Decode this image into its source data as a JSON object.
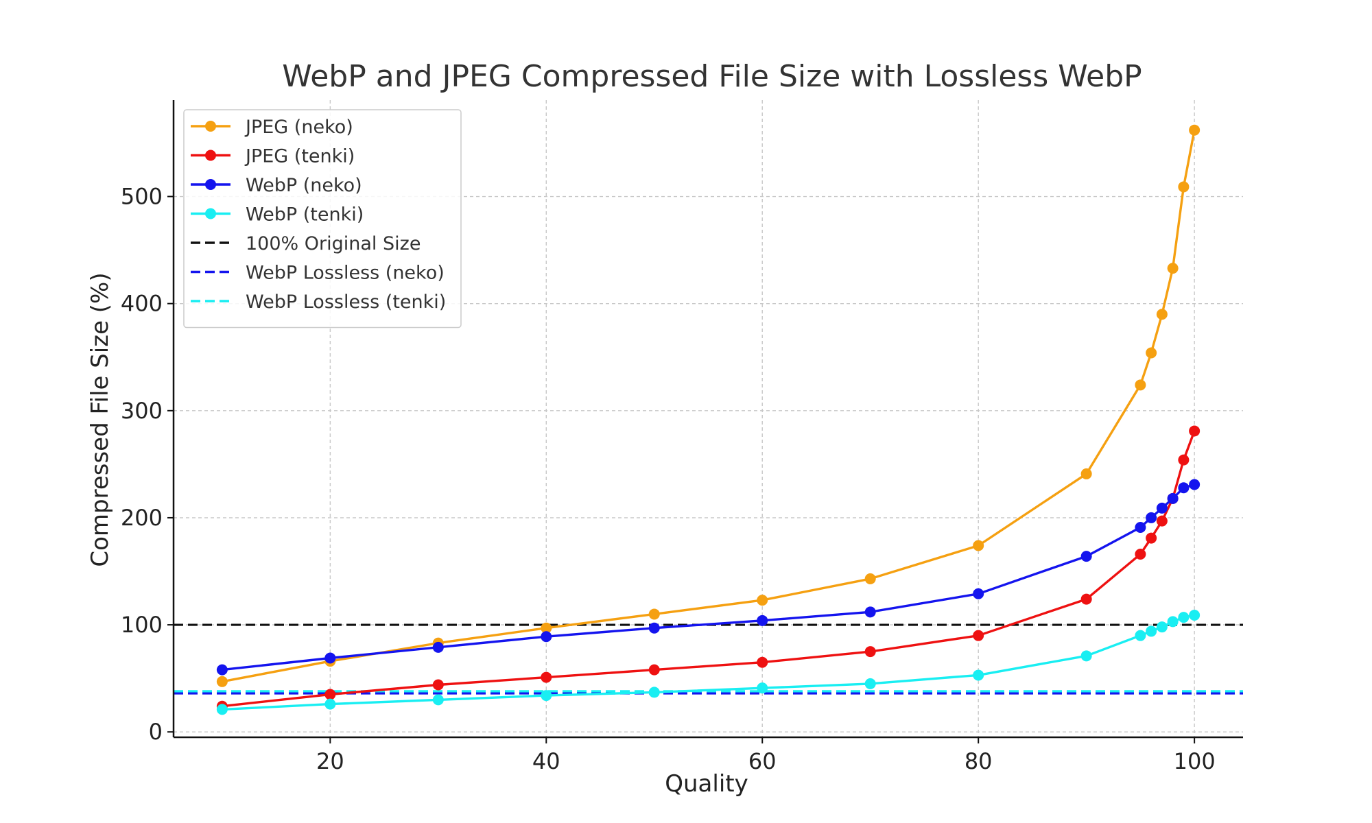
{
  "chart_data": {
    "type": "line",
    "title": "WebP and JPEG Compressed File Size with Lossless WebP",
    "xlabel": "Quality",
    "ylabel": "Compressed File Size (%)",
    "xlim": [
      5.5,
      104.5
    ],
    "ylim": [
      -5,
      590
    ],
    "xticks": [
      20,
      40,
      60,
      80,
      100
    ],
    "yticks": [
      0,
      100,
      200,
      300,
      400,
      500
    ],
    "grid": true,
    "legend_position": "top-left",
    "x": [
      10,
      20,
      30,
      40,
      50,
      60,
      70,
      80,
      90,
      95,
      96,
      97,
      98,
      99,
      100
    ],
    "series": [
      {
        "name": "JPEG (neko)",
        "color": "#f5a011",
        "values": [
          47,
          66,
          83,
          97,
          110,
          123,
          143,
          174,
          241,
          324,
          354,
          390,
          433,
          509,
          562
        ]
      },
      {
        "name": "JPEG (tenki)",
        "color": "#ee1111",
        "values": [
          24,
          35,
          44,
          51,
          58,
          65,
          75,
          90,
          124,
          166,
          181,
          197,
          218,
          254,
          281
        ]
      },
      {
        "name": "WebP (neko)",
        "color": "#1414ee",
        "values": [
          58,
          69,
          79,
          89,
          97,
          104,
          112,
          129,
          164,
          191,
          200,
          209,
          218,
          228,
          231
        ]
      },
      {
        "name": "WebP (tenki)",
        "color": "#19eef2",
        "values": [
          21,
          26,
          30,
          34,
          37,
          41,
          45,
          53,
          71,
          90,
          94,
          98,
          103,
          107,
          109
        ]
      }
    ],
    "reference_lines": [
      {
        "name": "100% Original Size",
        "value": 100,
        "color": "#111111"
      },
      {
        "name": "WebP Lossless (neko)",
        "value": 36,
        "color": "#1414ee"
      },
      {
        "name": "WebP Lossless (tenki)",
        "value": 38,
        "color": "#19eef2"
      }
    ]
  }
}
